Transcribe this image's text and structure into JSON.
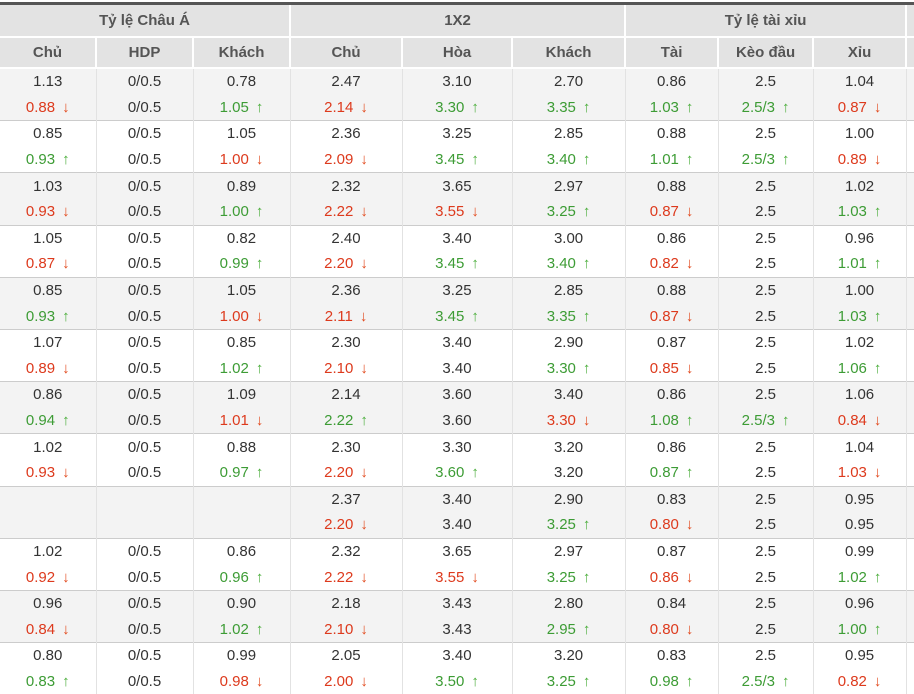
{
  "table": {
    "groups": [
      "Tỷ lệ Châu Á",
      "1X2",
      "Tỷ lệ tài xỉu"
    ],
    "columns": [
      "Chủ",
      "HDP",
      "Khách",
      "Chủ",
      "Hòa",
      "Khách",
      "Tài",
      "Kèo đầu",
      "Xỉu"
    ],
    "rows": [
      {
        "bg": "gray",
        "l1": [
          "1.13",
          "0/0.5",
          "0.78",
          "2.47",
          "3.10",
          "2.70",
          "0.86",
          "2.5",
          "1.04"
        ],
        "l2": [
          "0.88|d",
          "0/0.5",
          "1.05|u",
          "2.14|d",
          "3.30|u",
          "3.35|u",
          "1.03|u",
          "2.5/3|u",
          "0.87|d"
        ]
      },
      {
        "bg": "white",
        "l1": [
          "0.85",
          "0/0.5",
          "1.05",
          "2.36",
          "3.25",
          "2.85",
          "0.88",
          "2.5",
          "1.00"
        ],
        "l2": [
          "0.93|u",
          "0/0.5",
          "1.00|d",
          "2.09|d",
          "3.45|u",
          "3.40|u",
          "1.01|u",
          "2.5/3|u",
          "0.89|d"
        ]
      },
      {
        "bg": "gray",
        "l1": [
          "1.03",
          "0/0.5",
          "0.89",
          "2.32",
          "3.65",
          "2.97",
          "0.88",
          "2.5",
          "1.02"
        ],
        "l2": [
          "0.93|d",
          "0/0.5",
          "1.00|u",
          "2.22|d",
          "3.55|d",
          "3.25|u",
          "0.87|d",
          "2.5",
          "1.03|u"
        ]
      },
      {
        "bg": "white",
        "l1": [
          "1.05",
          "0/0.5",
          "0.82",
          "2.40",
          "3.40",
          "3.00",
          "0.86",
          "2.5",
          "0.96"
        ],
        "l2": [
          "0.87|d",
          "0/0.5",
          "0.99|u",
          "2.20|d",
          "3.45|u",
          "3.40|u",
          "0.82|d",
          "2.5",
          "1.01|u"
        ]
      },
      {
        "bg": "gray",
        "l1": [
          "0.85",
          "0/0.5",
          "1.05",
          "2.36",
          "3.25",
          "2.85",
          "0.88",
          "2.5",
          "1.00"
        ],
        "l2": [
          "0.93|u",
          "0/0.5",
          "1.00|d",
          "2.11|d",
          "3.45|u",
          "3.35|u",
          "0.87|d",
          "2.5",
          "1.03|u"
        ]
      },
      {
        "bg": "white",
        "l1": [
          "1.07",
          "0/0.5",
          "0.85",
          "2.30",
          "3.40",
          "2.90",
          "0.87",
          "2.5",
          "1.02"
        ],
        "l2": [
          "0.89|d",
          "0/0.5",
          "1.02|u",
          "2.10|d",
          "3.40",
          "3.30|u",
          "0.85|d",
          "2.5",
          "1.06|u"
        ]
      },
      {
        "bg": "gray",
        "l1": [
          "0.86",
          "0/0.5",
          "1.09",
          "2.14",
          "3.60",
          "3.40",
          "0.86",
          "2.5",
          "1.06"
        ],
        "l2": [
          "0.94|u",
          "0/0.5",
          "1.01|d",
          "2.22|u",
          "3.60",
          "3.30|d",
          "1.08|u",
          "2.5/3|u",
          "0.84|d"
        ]
      },
      {
        "bg": "white",
        "l1": [
          "1.02",
          "0/0.5",
          "0.88",
          "2.30",
          "3.30",
          "3.20",
          "0.86",
          "2.5",
          "1.04"
        ],
        "l2": [
          "0.93|d",
          "0/0.5",
          "0.97|u",
          "2.20|d",
          "3.60|u",
          "3.20",
          "0.87|u",
          "2.5",
          "1.03|d"
        ]
      },
      {
        "bg": "gray",
        "l1": [
          "",
          "",
          "",
          "2.37",
          "3.40",
          "2.90",
          "0.83",
          "2.5",
          "0.95"
        ],
        "l2": [
          "",
          "",
          "",
          "2.20|d",
          "3.40",
          "3.25|u",
          "0.80|d",
          "2.5",
          "0.95"
        ]
      },
      {
        "bg": "white",
        "l1": [
          "1.02",
          "0/0.5",
          "0.86",
          "2.32",
          "3.65",
          "2.97",
          "0.87",
          "2.5",
          "0.99"
        ],
        "l2": [
          "0.92|d",
          "0/0.5",
          "0.96|u",
          "2.22|d",
          "3.55|d",
          "3.25|u",
          "0.86|d",
          "2.5",
          "1.02|u"
        ]
      },
      {
        "bg": "gray",
        "l1": [
          "0.96",
          "0/0.5",
          "0.90",
          "2.18",
          "3.43",
          "2.80",
          "0.84",
          "2.5",
          "0.96"
        ],
        "l2": [
          "0.84|d",
          "0/0.5",
          "1.02|u",
          "2.10|d",
          "3.43",
          "2.95|u",
          "0.80|d",
          "2.5",
          "1.00|u"
        ]
      },
      {
        "bg": "white",
        "l1": [
          "0.80",
          "0/0.5",
          "0.99",
          "2.05",
          "3.40",
          "3.20",
          "0.83",
          "2.5",
          "0.95"
        ],
        "l2": [
          "0.83|u",
          "0/0.5",
          "0.98|d",
          "2.00|d",
          "3.50|u",
          "3.25|u",
          "0.98|u",
          "2.5/3|u",
          "0.82|d"
        ]
      }
    ]
  },
  "icons": {
    "trend_up": "↑",
    "trend_down": "↓"
  },
  "colors": {
    "text": "#333333",
    "up_green": "#3d9c35",
    "down_red": "#dd3a1d",
    "header_bg": "#e3e3e3",
    "header_text": "#555555",
    "row_alt_bg": "#f3f3f3",
    "top_border": "#555555",
    "cell_border": "#e2e2e2",
    "pair_border": "#cccccc"
  }
}
